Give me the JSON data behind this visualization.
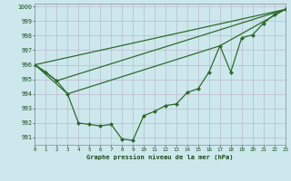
{
  "line_main": {
    "x": [
      0,
      1,
      2,
      3,
      4,
      5,
      6,
      7,
      8,
      9,
      10,
      11,
      12,
      13,
      14,
      15,
      16,
      17,
      18,
      19,
      20,
      21,
      22,
      23
    ],
    "y": [
      996.0,
      995.5,
      994.9,
      994.0,
      992.0,
      991.9,
      991.8,
      991.9,
      990.9,
      990.8,
      992.5,
      992.8,
      993.2,
      993.3,
      994.1,
      994.35,
      995.5,
      997.3,
      995.5,
      997.85,
      998.05,
      998.85,
      999.45,
      999.8
    ],
    "color": "#2d6a2d",
    "linewidth": 0.9,
    "marker": "D",
    "markersize": 2.0
  },
  "line_straight1": {
    "x": [
      0,
      23
    ],
    "y": [
      996.0,
      999.8
    ],
    "color": "#2d6a2d",
    "linewidth": 0.9
  },
  "line_straight2": {
    "x": [
      0,
      2,
      23
    ],
    "y": [
      996.0,
      994.9,
      999.8
    ],
    "color": "#2d6a2d",
    "linewidth": 0.9
  },
  "line_straight3": {
    "x": [
      0,
      3,
      17,
      23
    ],
    "y": [
      996.0,
      994.0,
      997.3,
      999.8
    ],
    "color": "#2d6a2d",
    "linewidth": 0.9
  },
  "xlim": [
    0,
    23
  ],
  "ylim": [
    990.5,
    1000.2
  ],
  "yticks": [
    991,
    992,
    993,
    994,
    995,
    996,
    997,
    998,
    999,
    1000
  ],
  "xticks": [
    0,
    1,
    2,
    3,
    4,
    5,
    6,
    7,
    8,
    9,
    10,
    11,
    12,
    13,
    14,
    15,
    16,
    17,
    18,
    19,
    20,
    21,
    22,
    23
  ],
  "xlabel": "Graphe pression niveau de la mer (hPa)",
  "background_color": "#cce8ed",
  "grid_color": "#b0c8d0",
  "text_color": "#1a4a1a",
  "label_color": "#1a4a1a"
}
